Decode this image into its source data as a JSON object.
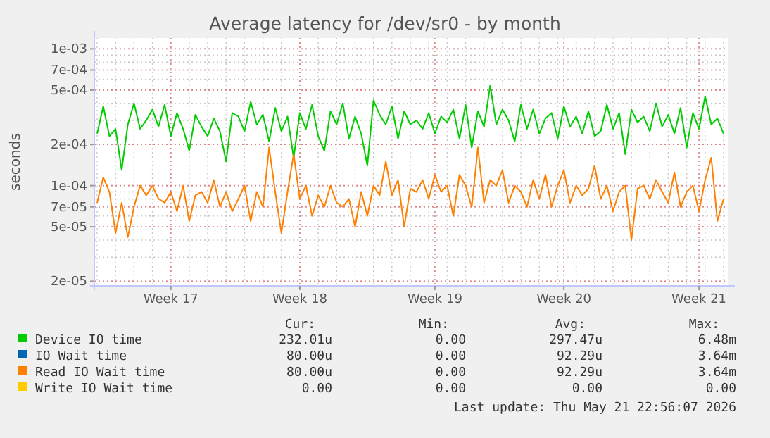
{
  "chart_data": {
    "type": "line",
    "title": "Average latency for /dev/sr0 - by month",
    "ylabel": "seconds",
    "log": "y",
    "grid": true,
    "legend": "bottom",
    "marker": "none",
    "line_style": "solid",
    "categories": [
      null,
      null,
      null,
      null,
      null,
      null,
      null,
      null,
      null,
      null,
      null,
      null,
      "Week 17",
      null,
      null,
      null,
      null,
      null,
      null,
      null,
      null,
      null,
      null,
      null,
      null,
      null,
      null,
      null,
      null,
      null,
      null,
      null,
      null,
      "Week 18",
      null,
      null,
      null,
      null,
      null,
      null,
      null,
      null,
      null,
      null,
      null,
      null,
      null,
      null,
      null,
      null,
      null,
      null,
      null,
      null,
      null,
      "Week 19",
      null,
      null,
      null,
      null,
      null,
      null,
      null,
      null,
      null,
      null,
      null,
      null,
      null,
      null,
      null,
      null,
      null,
      null,
      null,
      null,
      "Week 20",
      null,
      null,
      null,
      null,
      null,
      null,
      null,
      null,
      null,
      null,
      null,
      null,
      null,
      null,
      null,
      null,
      null,
      null,
      null,
      null,
      null,
      "Week 21",
      null,
      null,
      null,
      null
    ],
    "ylim": [
      1.85e-05,
      0.0012
    ],
    "yticks": [
      {
        "value": 2e-05,
        "label": "2e-05"
      },
      {
        "value": 5e-05,
        "label": "5e-05"
      },
      {
        "value": 7e-05,
        "label": "7e-05"
      },
      {
        "value": 0.0001,
        "label": "1e-04"
      },
      {
        "value": 0.0002,
        "label": "2e-04"
      },
      {
        "value": 0.0005,
        "label": "5e-04"
      },
      {
        "value": 0.0007,
        "label": "7e-04"
      },
      {
        "value": 0.001,
        "label": "1e-03"
      }
    ],
    "series": [
      {
        "name": "Device IO time",
        "color": "#00cc00",
        "values": [
          0.00024,
          0.00038,
          0.00023,
          0.00026,
          0.00013,
          0.00028,
          0.0004,
          0.00026,
          0.0003,
          0.00036,
          0.00027,
          0.00039,
          0.00023,
          0.00034,
          0.00026,
          0.00018,
          0.00033,
          0.00027,
          0.00023,
          0.00031,
          0.00025,
          0.00015,
          0.00034,
          0.00032,
          0.00025,
          0.00041,
          0.00028,
          0.00033,
          0.00021,
          0.00037,
          0.00025,
          0.00032,
          0.00016,
          0.00034,
          0.00026,
          0.00039,
          0.00023,
          0.00018,
          0.00035,
          0.00028,
          0.0004,
          0.00022,
          0.00032,
          0.00024,
          0.00014,
          0.00042,
          0.00033,
          0.00028,
          0.00038,
          0.00022,
          0.00035,
          0.00028,
          0.0003,
          0.00026,
          0.00034,
          0.00024,
          0.00032,
          0.00029,
          0.00036,
          0.00022,
          0.00039,
          0.00019,
          0.00035,
          0.00027,
          0.00054,
          0.00028,
          0.00036,
          0.0003,
          0.00021,
          0.00039,
          0.00026,
          0.00036,
          0.00024,
          0.00031,
          0.00034,
          0.00022,
          0.00038,
          0.00027,
          0.00032,
          0.00024,
          0.00035,
          0.00023,
          0.00025,
          0.00039,
          0.00026,
          0.00034,
          0.00017,
          0.00036,
          0.00029,
          0.00032,
          0.00025,
          0.0004,
          0.00027,
          0.00033,
          0.00024,
          0.00037,
          0.00019,
          0.00034,
          0.00026,
          0.00045,
          0.00028,
          0.00031,
          0.00024
        ]
      },
      {
        "name": "IO Wait time",
        "color": "#0066b3",
        "values": [
          null,
          null,
          null,
          null,
          null,
          null,
          null,
          null,
          null,
          null,
          null,
          null,
          null,
          null,
          null,
          null,
          null,
          null,
          null,
          null,
          null,
          null,
          null,
          null,
          null,
          null,
          null,
          null,
          null,
          null,
          null,
          null,
          null,
          null,
          null,
          null,
          null,
          null,
          null,
          null,
          null,
          null,
          null,
          null,
          null,
          null,
          null,
          null,
          null,
          null,
          null,
          null,
          null,
          null,
          null,
          null,
          null,
          null,
          null,
          null,
          null,
          null,
          null,
          null,
          null,
          null,
          null,
          null,
          null,
          null,
          null,
          null,
          null,
          null,
          null,
          null,
          null,
          null,
          null,
          null,
          null,
          null,
          null,
          null,
          null,
          null,
          null,
          null,
          null,
          null,
          null,
          null,
          null,
          null,
          null,
          null,
          null,
          null,
          null,
          null,
          null,
          null,
          null
        ]
      },
      {
        "name": "Read IO Wait time",
        "color": "#ff8000",
        "values": [
          7.5e-05,
          0.000115,
          9e-05,
          4.5e-05,
          7.5e-05,
          4.2e-05,
          7e-05,
          0.0001,
          8.5e-05,
          0.0001,
          8e-05,
          7.5e-05,
          9e-05,
          6.5e-05,
          0.0001,
          5.5e-05,
          8.5e-05,
          9e-05,
          7.5e-05,
          0.00011,
          7e-05,
          9e-05,
          6.5e-05,
          8e-05,
          0.0001,
          5.5e-05,
          9e-05,
          7e-05,
          0.00019,
          9e-05,
          4.5e-05,
          9e-05,
          0.00017,
          8e-05,
          0.0001,
          6e-05,
          8.5e-05,
          7e-05,
          0.0001,
          7.5e-05,
          7e-05,
          8e-05,
          5e-05,
          9e-05,
          6e-05,
          0.0001,
          8.5e-05,
          0.00015,
          8.5e-05,
          0.00011,
          5e-05,
          9.5e-05,
          9e-05,
          0.00011,
          8e-05,
          0.00012,
          9e-05,
          0.0001,
          6e-05,
          0.00012,
          0.0001,
          7e-05,
          0.00019,
          7.5e-05,
          0.00011,
          0.0001,
          0.00013,
          7.5e-05,
          0.0001,
          9e-05,
          7e-05,
          0.00011,
          8e-05,
          0.00012,
          7e-05,
          0.0001,
          0.00013,
          7.5e-05,
          0.0001,
          8.5e-05,
          9.5e-05,
          0.00014,
          8e-05,
          0.0001,
          6.5e-05,
          9e-05,
          0.0001,
          4e-05,
          9.5e-05,
          0.0001,
          8e-05,
          0.00011,
          9e-05,
          7.5e-05,
          0.000125,
          7e-05,
          9e-05,
          0.0001,
          6.5e-05,
          0.00011,
          0.00016,
          5.5e-05,
          8e-05
        ]
      },
      {
        "name": "Write IO Wait time",
        "color": "#ffcc00",
        "values": [
          null,
          null,
          null,
          null,
          null,
          null,
          null,
          null,
          null,
          null,
          null,
          null,
          null,
          null,
          null,
          null,
          null,
          null,
          null,
          null,
          null,
          null,
          null,
          null,
          null,
          null,
          null,
          null,
          null,
          null,
          null,
          null,
          null,
          null,
          null,
          null,
          null,
          null,
          null,
          null,
          null,
          null,
          null,
          null,
          null,
          null,
          null,
          null,
          null,
          null,
          null,
          null,
          null,
          null,
          null,
          null,
          null,
          null,
          null,
          null,
          null,
          null,
          null,
          null,
          null,
          null,
          null,
          null,
          null,
          null,
          null,
          null,
          null,
          null,
          null,
          null,
          null,
          null,
          null,
          null,
          null,
          null,
          null,
          null,
          null,
          null,
          null,
          null,
          null,
          null,
          null,
          null,
          null,
          null,
          null,
          null,
          null,
          null,
          null,
          null,
          null,
          null,
          null
        ]
      }
    ],
    "annotations": [
      "Cur:",
      "Min:",
      "Avg:",
      "Max:",
      "232.01u",
      "0.00",
      "297.47u",
      "6.48m",
      "80.00u",
      "0.00",
      "92.29u",
      "3.64m",
      "80.00u",
      "0.00",
      "92.29u",
      "3.64m",
      "0.00",
      "0.00",
      "0.00",
      "0.00",
      "Last update: Thu May 21 22:56:07 2026"
    ]
  }
}
